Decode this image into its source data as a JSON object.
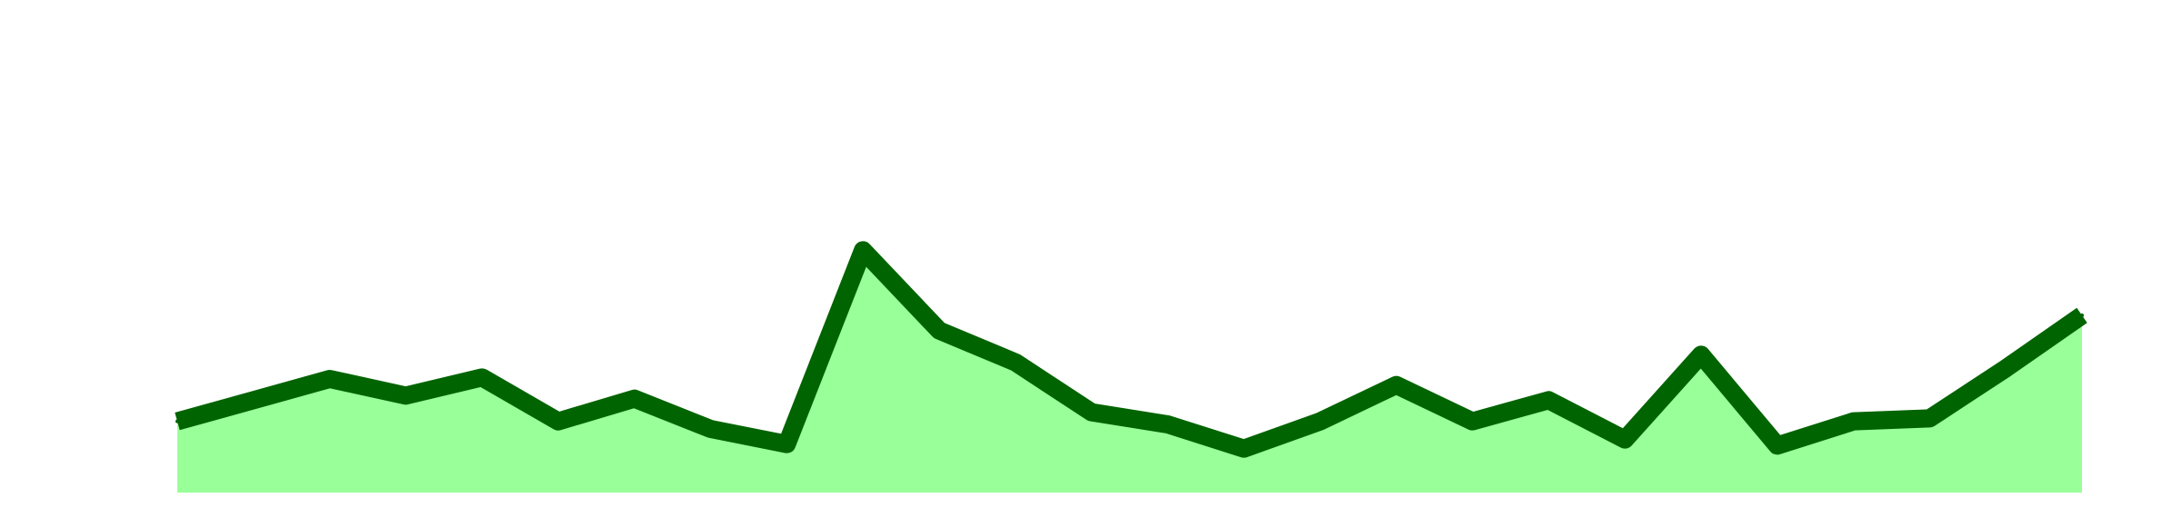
{
  "chart_data": {
    "type": "area",
    "title": "",
    "xlabel": "",
    "ylabel": "",
    "x": [
      1,
      2,
      3,
      4,
      5,
      6,
      7,
      8,
      9,
      10,
      11,
      12,
      13,
      14,
      15,
      16,
      17,
      18,
      19,
      20,
      21,
      22,
      23,
      24,
      25,
      26
    ],
    "series": [
      {
        "values": [
          47,
          61,
          75,
          64,
          76,
          47,
          62,
          42,
          32,
          160,
          107,
          86,
          53,
          45,
          29,
          47,
          71,
          47,
          61,
          35,
          91,
          31,
          47,
          49,
          82,
          117
        ]
      }
    ],
    "ylim": [
      0,
      300
    ],
    "grid": false,
    "legend": "none",
    "colors": {
      "line": "#006400",
      "fill": "#99ff99",
      "background": "#ffffff"
    }
  }
}
